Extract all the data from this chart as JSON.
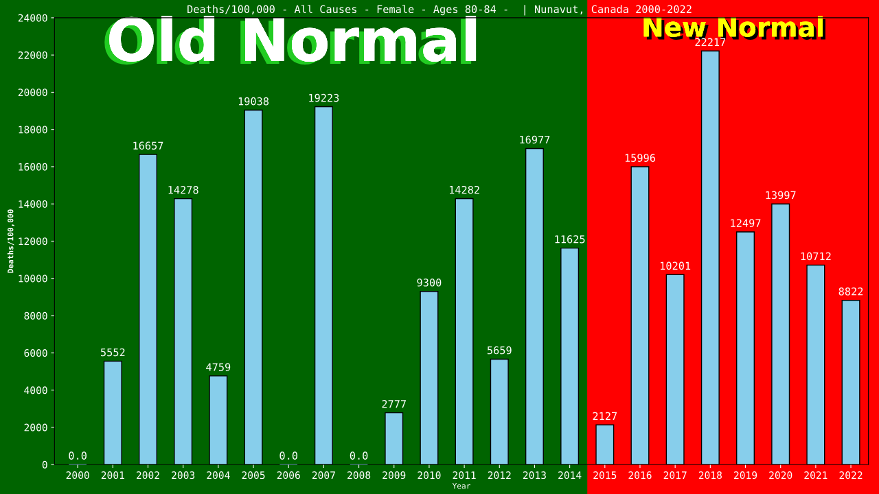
{
  "chart_data": {
    "type": "bar",
    "title": "Deaths/100,000 - All Causes - Female - Ages 80-84 -  | Nunavut, Canada 2000-2022",
    "xlabel": "Year",
    "ylabel": "Deaths/100,000",
    "categories": [
      "2000",
      "2001",
      "2002",
      "2003",
      "2004",
      "2005",
      "2006",
      "2007",
      "2008",
      "2009",
      "2010",
      "2011",
      "2012",
      "2013",
      "2014",
      "2015",
      "2016",
      "2017",
      "2018",
      "2019",
      "2020",
      "2021",
      "2022"
    ],
    "values": [
      0,
      5552,
      16657,
      14278,
      4759,
      19038,
      0,
      19223,
      0,
      2777,
      9300,
      14282,
      5659,
      16977,
      11625,
      2127,
      15996,
      10201,
      22217,
      12497,
      13997,
      10712,
      8822
    ],
    "value_labels": [
      "0.0",
      "5552",
      "16657",
      "14278",
      "4759",
      "19038",
      "0.0",
      "19223",
      "0.0",
      "2777",
      "9300",
      "14282",
      "5659",
      "16977",
      "11625",
      "2127",
      "15996",
      "10201",
      "22217",
      "12497",
      "13997",
      "10712",
      "8822"
    ],
    "color": "#87ceeb",
    "ylim": [
      0,
      24000
    ],
    "yticks": [
      0,
      2000,
      4000,
      6000,
      8000,
      10000,
      12000,
      14000,
      16000,
      18000,
      20000,
      22000,
      24000
    ],
    "grid": false,
    "legend": false,
    "bands": [
      {
        "axis": "x",
        "from": "2000",
        "to": "2014",
        "label": "Old Normal",
        "color": "#006400"
      },
      {
        "axis": "x",
        "from": "2015",
        "to": "2022",
        "label": "New Normal",
        "color": "#ff0000"
      }
    ]
  }
}
